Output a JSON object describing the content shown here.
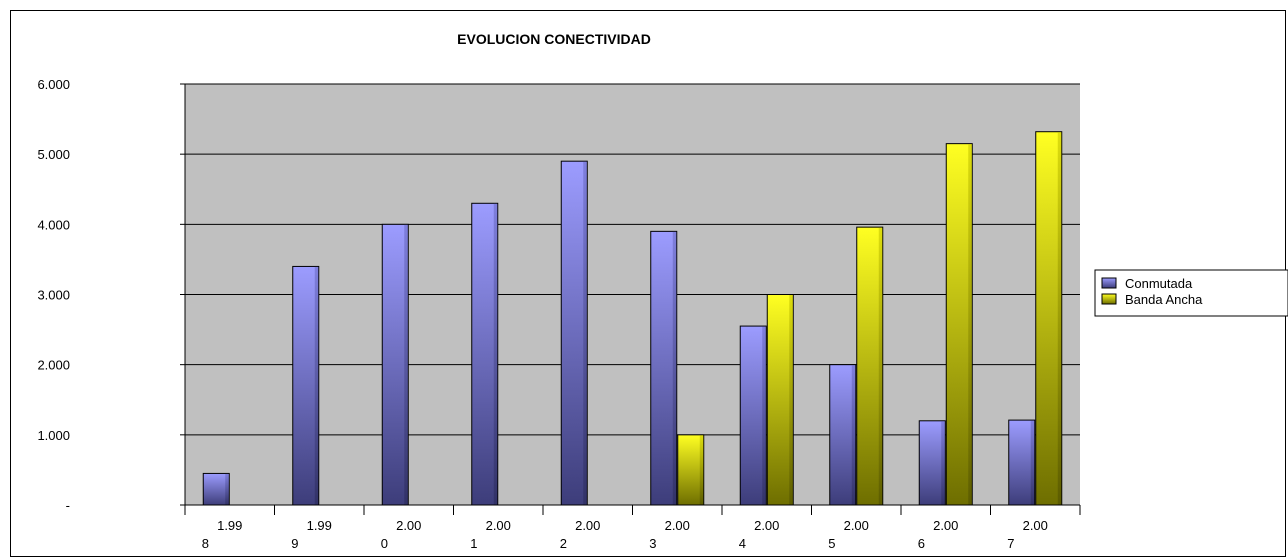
{
  "chart_data": {
    "type": "bar",
    "title": "EVOLUCION CONECTIVIDAD",
    "xlabel": "",
    "ylabel": "",
    "categories": [
      [
        "1.99",
        "8"
      ],
      [
        "1.99",
        "9"
      ],
      [
        "2.00",
        "0"
      ],
      [
        "2.00",
        "1"
      ],
      [
        "2.00",
        "2"
      ],
      [
        "2.00",
        "3"
      ],
      [
        "2.00",
        "4"
      ],
      [
        "2.00",
        "5"
      ],
      [
        "2.00",
        "6"
      ],
      [
        "2.00",
        "7"
      ]
    ],
    "series": [
      {
        "name": "Conmutada",
        "values": [
          450,
          3400,
          4000,
          4300,
          4900,
          3900,
          2550,
          2000,
          1200,
          1210
        ],
        "color": "#7b7bd9"
      },
      {
        "name": "Banda Ancha",
        "values": [
          null,
          null,
          null,
          null,
          null,
          1000,
          3000,
          3960,
          5150,
          5320
        ],
        "color": "#e0e000"
      }
    ],
    "ylim": [
      0,
      6000
    ],
    "yticks": [
      {
        "value": 0,
        "label": "-"
      },
      {
        "value": 1000,
        "label": "1.000"
      },
      {
        "value": 2000,
        "label": "2.000"
      },
      {
        "value": 3000,
        "label": "3.000"
      },
      {
        "value": 4000,
        "label": "4.000"
      },
      {
        "value": 5000,
        "label": "5.000"
      },
      {
        "value": 6000,
        "label": "6.000"
      }
    ],
    "grid": true,
    "plot_background": "#c0c0c0",
    "legend_position": "right"
  }
}
